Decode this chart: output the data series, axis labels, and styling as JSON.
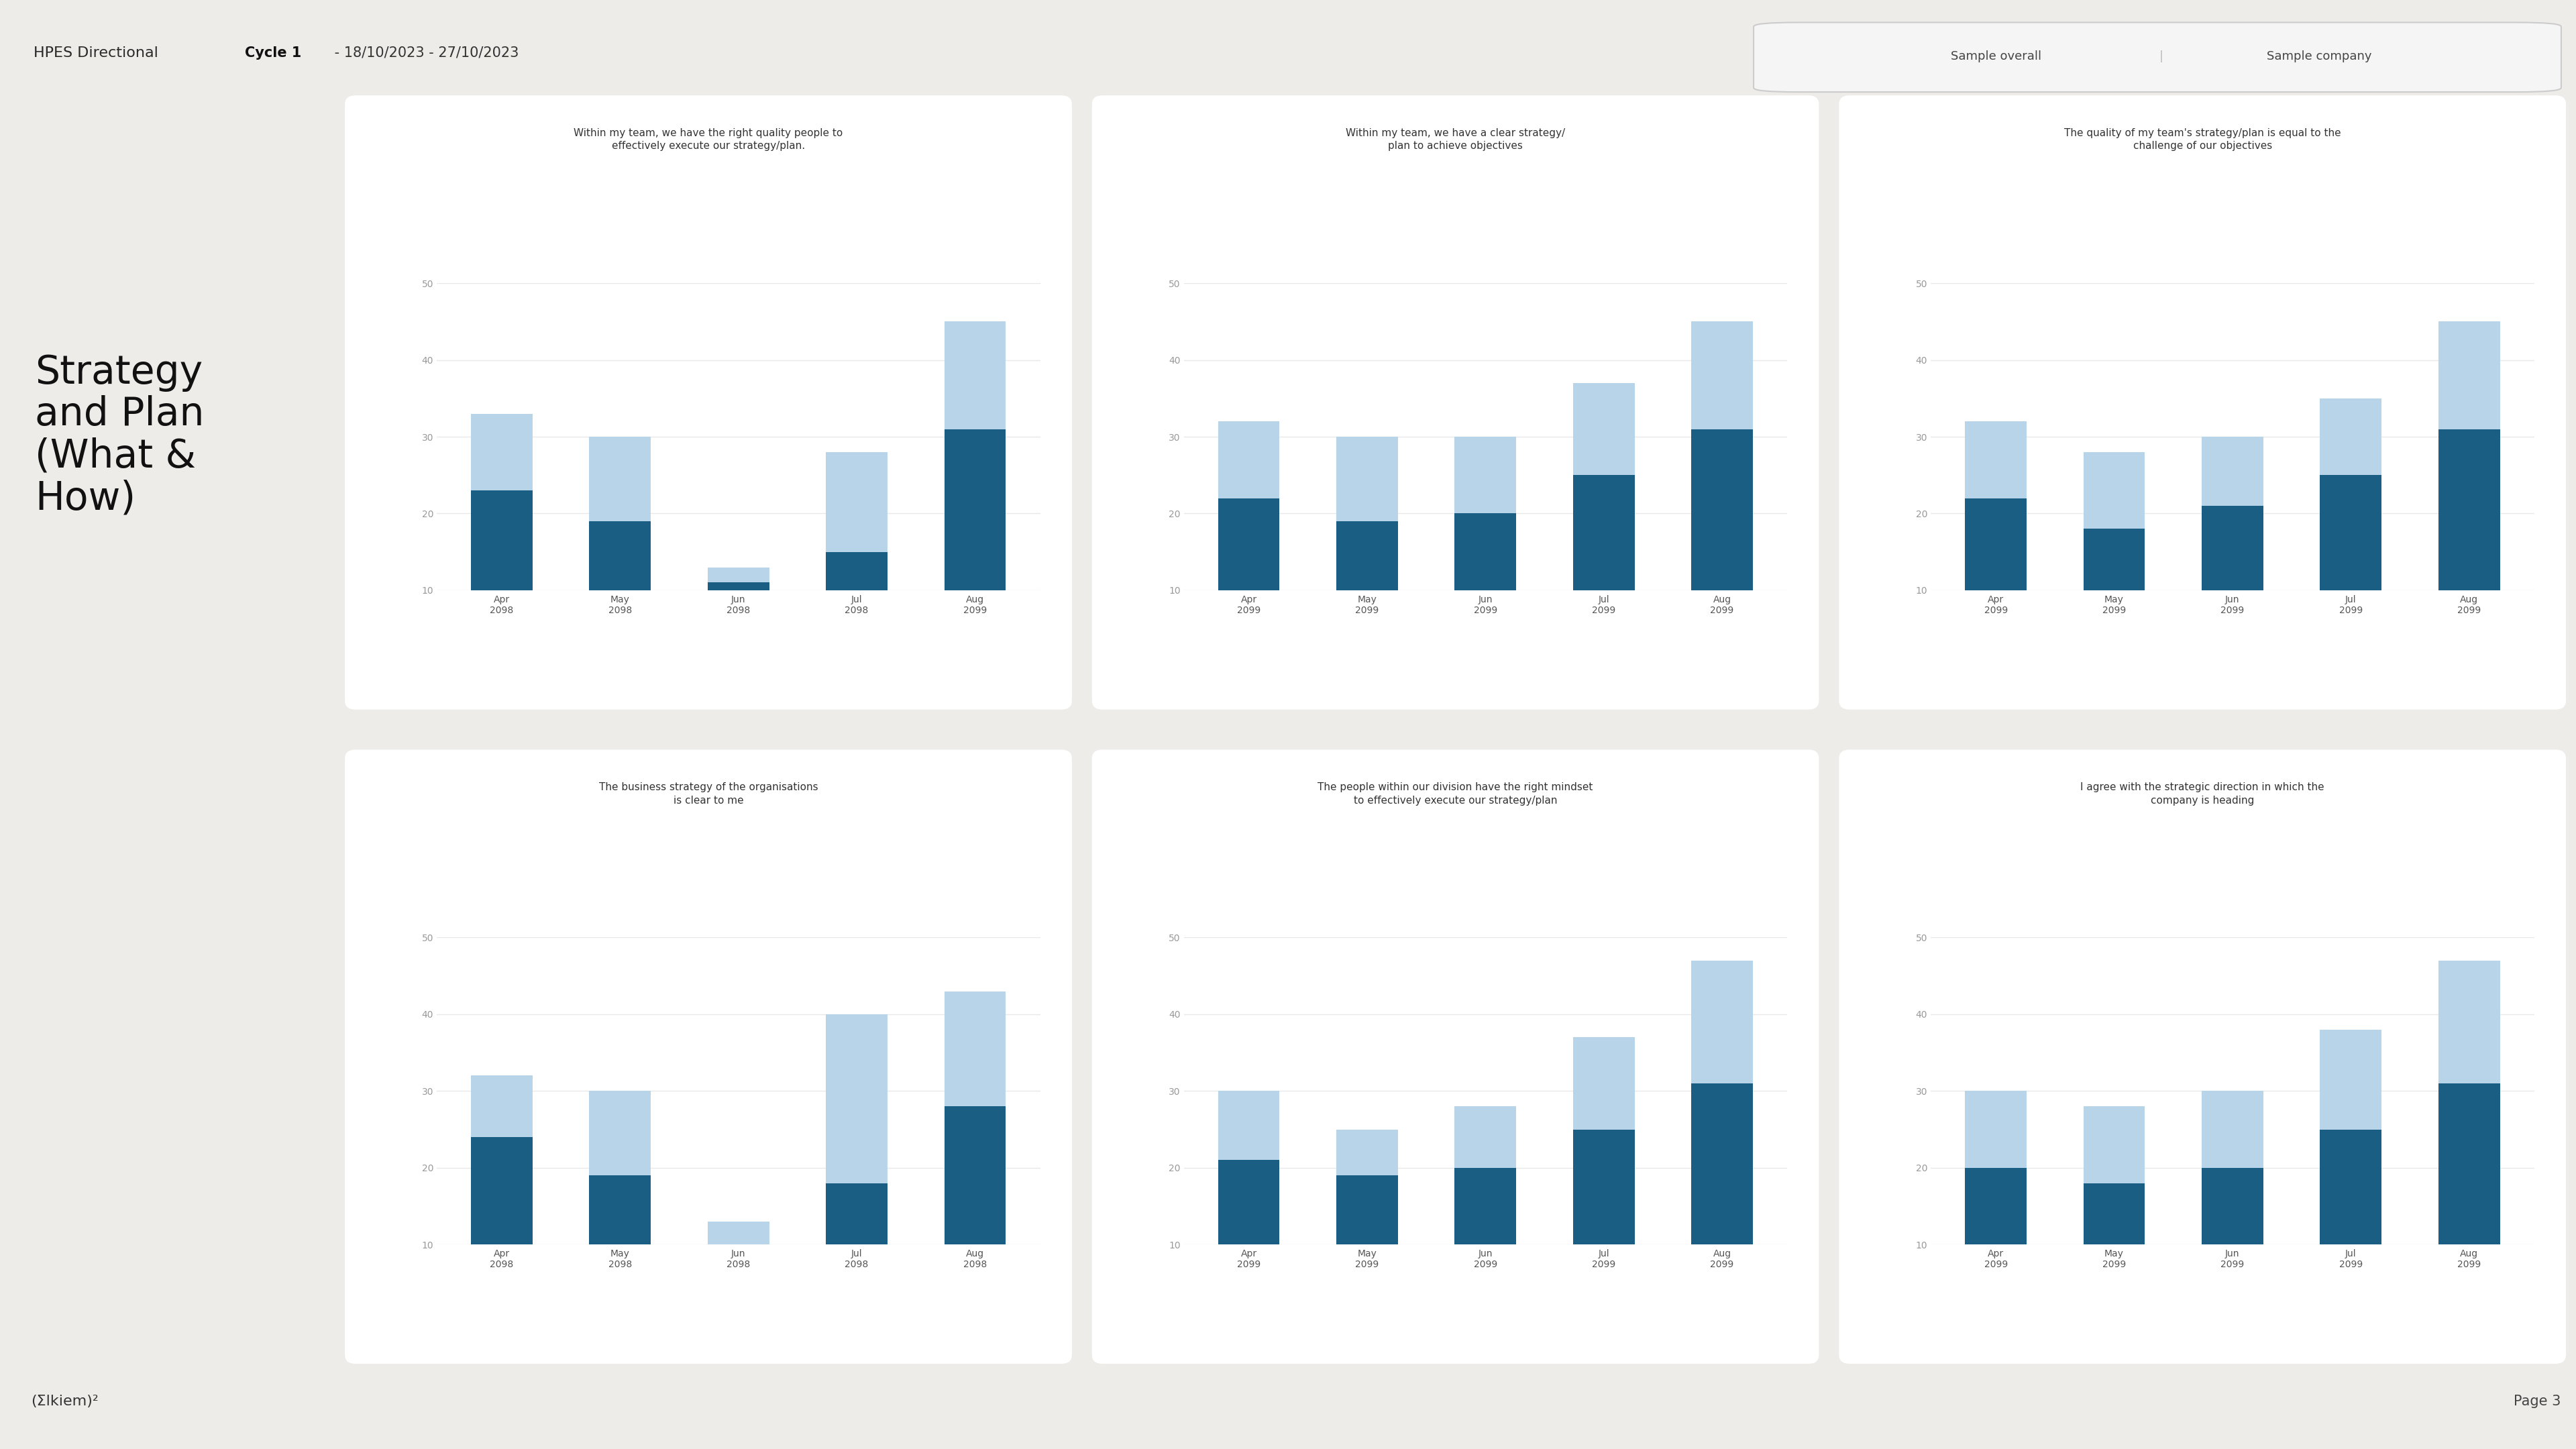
{
  "background_color": "#eeece9",
  "panel_color": "#ffffff",
  "header_text": "HPES Directional",
  "cycle_bold": "Cycle 1",
  "cycle_normal": " - 18/10/2023 - 27/10/2023",
  "sample_overall": "Sample overall",
  "sample_company": "Sample company",
  "page_label": "Page 3",
  "section_title": "Strategy\nand Plan\n(What &\nHow)",
  "charts": [
    {
      "title": "Within my team, we have the right quality people to\neffectively execute our strategy/plan.",
      "x_labels": [
        "Apr\n2098",
        "May\n2098",
        "Jun\n2098",
        "Jul\n2098",
        "Aug\n2099"
      ],
      "light_values": [
        33,
        30,
        13,
        28,
        45
      ],
      "dark_values": [
        23,
        19,
        11,
        15,
        31
      ],
      "ylim": [
        10,
        50
      ]
    },
    {
      "title": "Within my team, we have a clear strategy/\nplan to achieve objectives",
      "x_labels": [
        "Apr\n2099",
        "May\n2099",
        "Jun\n2099",
        "Jul\n2099",
        "Aug\n2099"
      ],
      "light_values": [
        32,
        30,
        30,
        37,
        45
      ],
      "dark_values": [
        22,
        19,
        20,
        25,
        31
      ],
      "ylim": [
        10,
        50
      ]
    },
    {
      "title": "The quality of my team's strategy/plan is equal to the\nchallenge of our objectives",
      "x_labels": [
        "Apr\n2099",
        "May\n2099",
        "Jun\n2099",
        "Jul\n2099",
        "Aug\n2099"
      ],
      "light_values": [
        32,
        28,
        30,
        35,
        45
      ],
      "dark_values": [
        22,
        18,
        21,
        25,
        31
      ],
      "ylim": [
        10,
        50
      ]
    },
    {
      "title": "The business strategy of the organisations\nis clear to me",
      "x_labels": [
        "Apr\n2098",
        "May\n2098",
        "Jun\n2098",
        "Jul\n2098",
        "Aug\n2098"
      ],
      "light_values": [
        32,
        30,
        13,
        40,
        43
      ],
      "dark_values": [
        24,
        19,
        10,
        18,
        28
      ],
      "ylim": [
        10,
        50
      ]
    },
    {
      "title": "The people within our division have the right mindset\nto effectively execute our strategy/plan",
      "x_labels": [
        "Apr\n2099",
        "May\n2099",
        "Jun\n2099",
        "Jul\n2099",
        "Aug\n2099"
      ],
      "light_values": [
        30,
        25,
        28,
        37,
        47
      ],
      "dark_values": [
        21,
        19,
        20,
        25,
        31
      ],
      "ylim": [
        10,
        50
      ]
    },
    {
      "title": "I agree with the strategic direction in which the\ncompany is heading",
      "x_labels": [
        "Apr\n2099",
        "May\n2099",
        "Jun\n2099",
        "Jul\n2099",
        "Aug\n2099"
      ],
      "light_values": [
        30,
        28,
        30,
        38,
        47
      ],
      "dark_values": [
        20,
        18,
        20,
        25,
        31
      ],
      "ylim": [
        10,
        50
      ]
    }
  ],
  "dark_bar_color": "#1b5e84",
  "light_bar_color": "#b8d4e8",
  "yticks": [
    10,
    20,
    30,
    40,
    50
  ],
  "bar_width": 0.52,
  "grid_color": "#e8e8e8",
  "title_fontsize": 11,
  "tick_fontsize": 10,
  "axis_label_color": "#999999",
  "xtick_color": "#555555"
}
